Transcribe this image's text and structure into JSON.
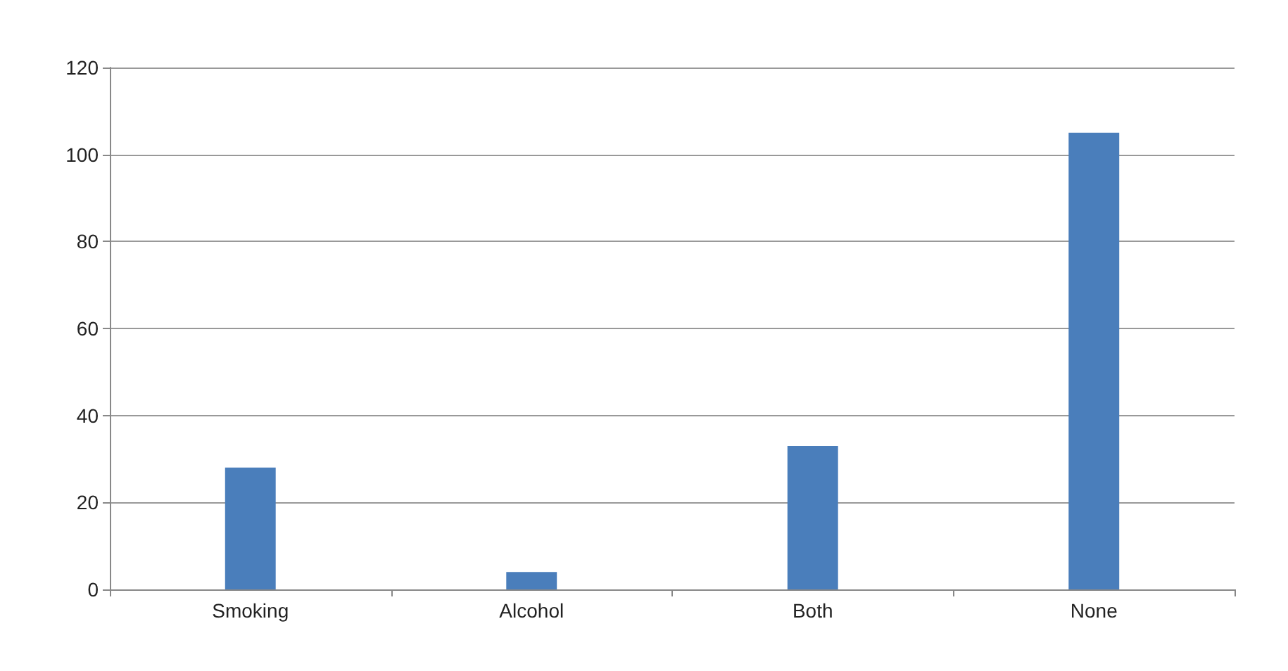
{
  "chart_data": {
    "type": "bar",
    "categories": [
      "Smoking",
      "Alcohol",
      "Both",
      "None"
    ],
    "values": [
      28,
      4,
      33,
      105
    ],
    "color": "#4a7ebb",
    "ylim": [
      0,
      120
    ],
    "yticks": [
      0,
      20,
      40,
      60,
      80,
      100,
      120
    ],
    "grid": "y"
  }
}
